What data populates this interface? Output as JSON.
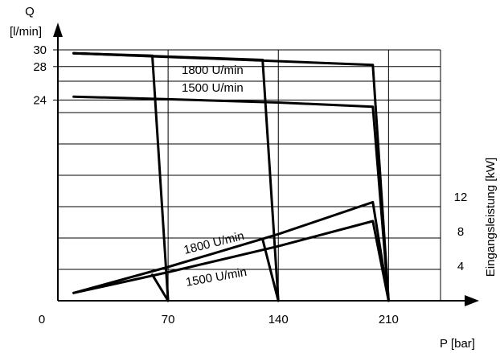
{
  "chart_data": {
    "type": "line",
    "title": "",
    "xlabel": "P [bar]",
    "ylabel_left_line1": "Q",
    "ylabel_left_line2": "[l/min]",
    "ylabel_right": "Eingangsleistung [kW]",
    "x_origin_label": "0",
    "xticks": [
      70,
      140,
      210
    ],
    "xlim": [
      0,
      243
    ],
    "yticks_left": [
      24,
      28,
      30
    ],
    "ylim_left": [
      0,
      30
    ],
    "yticks_right": [
      4,
      8,
      12
    ],
    "ylim_right": [
      0,
      29
    ],
    "grid": true,
    "flow_curves": [
      {
        "name": "1800 U/min",
        "cutoffs": [
          {
            "p_max": 70,
            "points": [
              [
                10,
                29.6
              ],
              [
                60,
                29.3
              ],
              [
                70,
                0
              ]
            ]
          },
          {
            "p_max": 140,
            "points": [
              [
                10,
                29.6
              ],
              [
                130,
                28.8
              ],
              [
                140,
                0
              ]
            ]
          },
          {
            "p_max": 210,
            "points": [
              [
                10,
                29.6
              ],
              [
                200,
                28.2
              ],
              [
                210,
                0
              ]
            ]
          }
        ]
      },
      {
        "name": "1500 U/min",
        "points": [
          [
            10,
            24.4
          ],
          [
            70,
            24.1
          ],
          [
            140,
            23.7
          ],
          [
            200,
            23.2
          ],
          [
            210,
            0
          ]
        ]
      }
    ],
    "power_curves": [
      {
        "name": "1800 U/min",
        "points": [
          [
            10,
            0.9
          ],
          [
            70,
            3.9
          ],
          [
            140,
            7.7
          ],
          [
            200,
            11.4
          ],
          [
            210,
            0
          ]
        ]
      },
      {
        "name": "1500 U/min",
        "points": [
          [
            10,
            0.9
          ],
          [
            70,
            3.3
          ],
          [
            140,
            6.3
          ],
          [
            200,
            9.2
          ],
          [
            210,
            0
          ]
        ]
      }
    ],
    "power_drops": [
      {
        "p_max": 70,
        "points": [
          [
            60,
            3.0
          ],
          [
            70,
            0
          ]
        ]
      },
      {
        "p_max": 140,
        "points": [
          [
            130,
            7.1
          ],
          [
            140,
            0
          ]
        ]
      }
    ]
  }
}
